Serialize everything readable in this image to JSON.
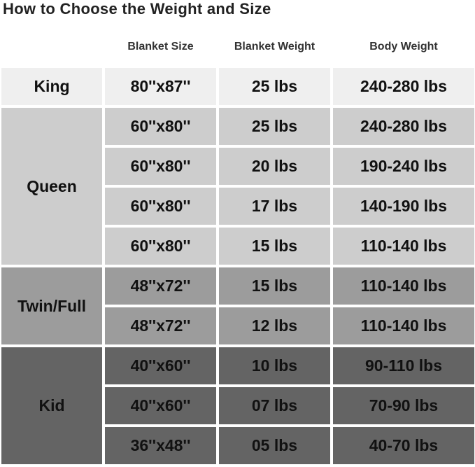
{
  "title": "How to Choose the Weight and Size",
  "headers": {
    "size": "Blanket Size",
    "weight": "Blanket Weight",
    "body": "Body Weight"
  },
  "colors": {
    "King": "#efefef",
    "Queen": "#cdcdcd",
    "Twin/Full": "#9c9c9c",
    "Kid": "#646464"
  },
  "groups": [
    "King",
    "Queen",
    "Twin/Full",
    "Kid"
  ],
  "rows": [
    {
      "size": "80''x87''",
      "weight": "25 lbs",
      "body": "240-280 lbs"
    },
    {
      "size": "60''x80''",
      "weight": "25 lbs",
      "body": "240-280 lbs"
    },
    {
      "size": "60''x80''",
      "weight": "20 lbs",
      "body": "190-240 lbs"
    },
    {
      "size": "60''x80''",
      "weight": "17 lbs",
      "body": "140-190 lbs"
    },
    {
      "size": "60''x80''",
      "weight": "15 lbs",
      "body": "110-140 lbs"
    },
    {
      "size": "48''x72''",
      "weight": "15 lbs",
      "body": "110-140 lbs"
    },
    {
      "size": "48''x72''",
      "weight": "12 lbs",
      "body": "110-140 lbs"
    },
    {
      "size": "40''x60''",
      "weight": "10 lbs",
      "body": "90-110 lbs"
    },
    {
      "size": "40''x60''",
      "weight": "07 lbs",
      "body": "70-90 lbs"
    },
    {
      "size": "36''x48''",
      "weight": "05 lbs",
      "body": "40-70 lbs"
    }
  ]
}
